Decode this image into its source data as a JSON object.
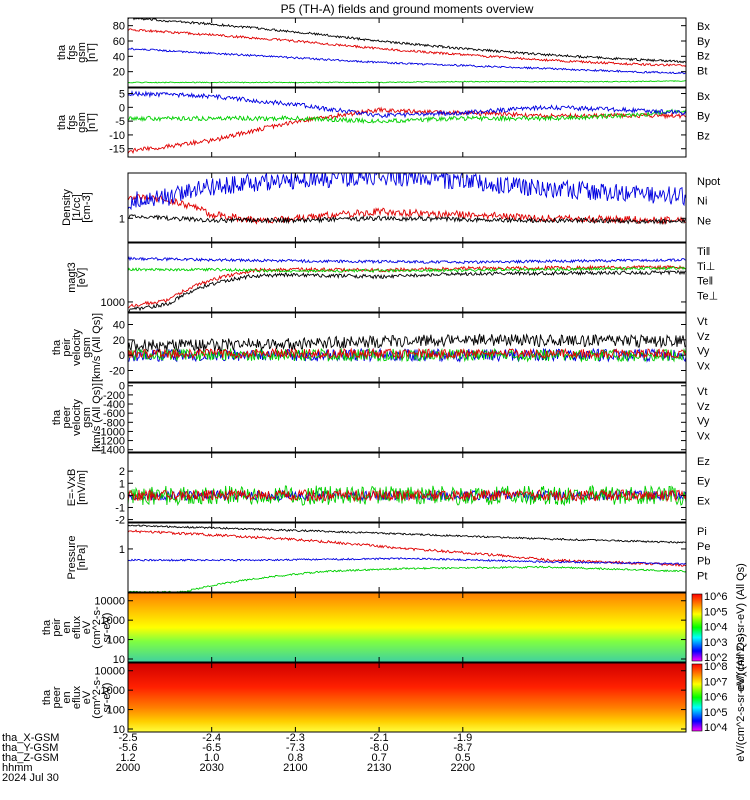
{
  "title": "P5 (TH-A) fields and ground moments overview",
  "colors": {
    "black": "#000000",
    "red": "#e00000",
    "green": "#00d000",
    "blue": "#0000e0"
  },
  "chart_data": [
    {
      "type": "line",
      "panel": "fgs_gsm_magnitude",
      "ylabel_lines": [
        "tha",
        "fgs",
        "gsm",
        "[nT]"
      ],
      "ylim": [
        0,
        90
      ],
      "yticks": [
        "20",
        "40",
        "60",
        "80"
      ],
      "series": [
        {
          "name": "Bt",
          "color": "black",
          "x_min": [
            0,
            30,
            60,
            90,
            120,
            150,
            180,
            200
          ],
          "values": [
            90,
            82,
            72,
            60,
            50,
            42,
            36,
            33
          ],
          "noise": 1.5
        },
        {
          "name": "Bz",
          "color": "red",
          "x_min": [
            0,
            30,
            60,
            90,
            120,
            150,
            180,
            200
          ],
          "values": [
            75,
            68,
            60,
            50,
            42,
            35,
            30,
            28
          ],
          "noise": 1.5
        },
        {
          "name": "By",
          "color": "green",
          "x_min": [
            0,
            30,
            60,
            90,
            120,
            150,
            180,
            200
          ],
          "values": [
            6,
            6,
            6,
            6,
            7,
            7,
            7,
            8
          ],
          "noise": 0.6
        },
        {
          "name": "Bx",
          "color": "blue",
          "x_min": [
            0,
            30,
            60,
            90,
            120,
            150,
            180,
            200
          ],
          "values": [
            50,
            44,
            38,
            32,
            28,
            24,
            20,
            18
          ],
          "noise": 1.2
        }
      ]
    },
    {
      "type": "line",
      "panel": "fgs_gsm_components",
      "ylabel_lines": [
        "tha",
        "fgs",
        "gsm",
        "[nT]"
      ],
      "ylim": [
        -18,
        7
      ],
      "yticks": [
        "-15",
        "-10",
        "-5",
        "0",
        "5"
      ],
      "series": [
        {
          "name": "Bz",
          "color": "red",
          "x_min": [
            0,
            30,
            60,
            90,
            120,
            150,
            180,
            200
          ],
          "values": [
            -16,
            -12,
            -5,
            -1,
            -2,
            -3,
            -3,
            -3
          ],
          "noise": 0.8
        },
        {
          "name": "By",
          "color": "green",
          "x_min": [
            0,
            30,
            60,
            90,
            120,
            150,
            180,
            200
          ],
          "values": [
            -4,
            -4,
            -4,
            -5,
            -4,
            -4,
            -3,
            -1
          ],
          "noise": 0.8
        },
        {
          "name": "Bx",
          "color": "blue",
          "x_min": [
            0,
            30,
            60,
            90,
            120,
            150,
            180,
            200
          ],
          "values": [
            5,
            4,
            1,
            -3,
            -2,
            0,
            -1,
            -2
          ],
          "noise": 0.8
        }
      ]
    },
    {
      "type": "line",
      "panel": "density",
      "ylabel_lines": [
        "Density",
        "[1/cc]",
        "[cm-3]"
      ],
      "ylim": [
        0.3,
        10
      ],
      "yticks": [
        "1"
      ],
      "series": [
        {
          "name": "Ne",
          "color": "red",
          "x_min": [
            0,
            15,
            30,
            45,
            60,
            90,
            120,
            150,
            200
          ],
          "values": [
            3.0,
            2.5,
            1.2,
            0.9,
            1.0,
            1.4,
            1.2,
            1.0,
            0.9
          ],
          "noise": 0.08
        },
        {
          "name": "Ni",
          "color": "black",
          "x_min": [
            0,
            30,
            60,
            90,
            120,
            150,
            200
          ],
          "values": [
            1.1,
            0.9,
            0.9,
            1.0,
            0.95,
            0.9,
            0.85
          ],
          "noise": 0.05
        },
        {
          "name": "Npot",
          "color": "blue",
          "x_min": [
            0,
            15,
            30,
            60,
            90,
            120,
            150,
            200
          ],
          "values": [
            2.5,
            3.0,
            5.0,
            7.0,
            8.5,
            6.5,
            4.5,
            3.0
          ],
          "noise": 0.2
        }
      ]
    },
    {
      "type": "line",
      "panel": "temperature",
      "ylabel_lines": [
        "magt3",
        "[eV]"
      ],
      "ylim": [
        600,
        20000
      ],
      "yticks": [
        "1000"
      ],
      "legend_only": [
        "Te⊥",
        "Te‖",
        "Ti⊥",
        "Ti‖"
      ],
      "series": [
        {
          "name": "Te⊥",
          "color": "red",
          "x_min": [
            0,
            15,
            30,
            45,
            60,
            90,
            120,
            200
          ],
          "values": [
            800,
            1100,
            3000,
            5000,
            5200,
            5000,
            5500,
            5800
          ],
          "noise": 0.04
        },
        {
          "name": "Te‖",
          "color": "black",
          "x_min": [
            0,
            15,
            30,
            45,
            60,
            90,
            120,
            200
          ],
          "values": [
            650,
            900,
            2500,
            3800,
            4000,
            3600,
            4200,
            4500
          ],
          "noise": 0.04
        },
        {
          "name": "Ti⊥",
          "color": "blue",
          "x_min": [
            0,
            60,
            120,
            200
          ],
          "values": [
            9000,
            8000,
            7500,
            8500
          ],
          "noise": 0.03
        },
        {
          "name": "Ti‖",
          "color": "green",
          "x_min": [
            0,
            30,
            60,
            120,
            200
          ],
          "values": [
            5200,
            5200,
            4800,
            5000,
            5600
          ],
          "noise": 0.03
        }
      ]
    },
    {
      "type": "line",
      "panel": "peir_velocity",
      "ylabel_lines": [
        "tha",
        "peir",
        "velocity",
        "gsm",
        "[km/s (All Qs)]"
      ],
      "ylim": [
        -35,
        55
      ],
      "yticks": [
        "-20",
        "0",
        "20",
        "40"
      ],
      "series": [
        {
          "name": "Vx",
          "color": "blue",
          "x_min": [
            0,
            200
          ],
          "values": [
            0,
            0
          ],
          "noise": 8
        },
        {
          "name": "Vy",
          "color": "green",
          "x_min": [
            0,
            200
          ],
          "values": [
            0,
            0
          ],
          "noise": 8
        },
        {
          "name": "Vz",
          "color": "red",
          "x_min": [
            0,
            200
          ],
          "values": [
            2,
            2
          ],
          "noise": 6
        },
        {
          "name": "Vt",
          "color": "black",
          "x_min": [
            0,
            60,
            120,
            200
          ],
          "values": [
            12,
            15,
            20,
            18
          ],
          "noise": 8
        }
      ]
    },
    {
      "type": "line",
      "panel": "peer_velocity",
      "ylabel_lines": [
        "tha",
        "peer",
        "velocity",
        "gsm",
        "[km/s (All Qs)]"
      ],
      "ylim": [
        -1450,
        60
      ],
      "yticks": [
        "-1400",
        "-1200",
        "-1000",
        "-800",
        "-600",
        "-400",
        "-200",
        "0"
      ],
      "empty": true,
      "series": [
        {
          "name": "Vx",
          "color": "blue"
        },
        {
          "name": "Vy",
          "color": "green"
        },
        {
          "name": "Vz",
          "color": "red"
        },
        {
          "name": "Vt",
          "color": "black"
        }
      ]
    },
    {
      "type": "line",
      "panel": "efield",
      "ylabel_lines": [
        "E=-VxB",
        "[mV/m]"
      ],
      "ylim": [
        -2.2,
        3.5
      ],
      "yticks": [
        "-2",
        "-1",
        "0",
        "1",
        "2"
      ],
      "series": [
        {
          "name": "Ex",
          "color": "blue",
          "x_min": [
            0,
            200
          ],
          "values": [
            0,
            0
          ],
          "noise": 0.4
        },
        {
          "name": "Ey",
          "color": "green",
          "x_min": [
            0,
            200
          ],
          "values": [
            0,
            0
          ],
          "noise": 0.8
        },
        {
          "name": "Ez",
          "color": "red",
          "x_min": [
            0,
            200
          ],
          "values": [
            0,
            0
          ],
          "noise": 0.45
        }
      ]
    },
    {
      "type": "line",
      "panel": "pressure",
      "ylabel_lines": [
        "Pressure",
        "[nPa]"
      ],
      "ylim": [
        0.1,
        4
      ],
      "yticks": [
        "1"
      ],
      "series": [
        {
          "name": "Pt",
          "color": "black",
          "x_min": [
            0,
            50,
            100,
            150,
            200
          ],
          "values": [
            3.5,
            2.8,
            2.2,
            1.7,
            1.4
          ],
          "noise": 0.02
        },
        {
          "name": "Pb",
          "color": "red",
          "x_min": [
            0,
            50,
            100,
            150,
            200
          ],
          "values": [
            2.6,
            1.8,
            1.0,
            0.55,
            0.42
          ],
          "noise": 0.03
        },
        {
          "name": "Pe",
          "color": "green",
          "x_min": [
            0,
            20,
            40,
            70,
            100,
            150,
            200
          ],
          "values": [
            0.1,
            0.1,
            0.18,
            0.3,
            0.35,
            0.38,
            0.3
          ],
          "noise": 0.02
        },
        {
          "name": "Pi",
          "color": "blue",
          "x_min": [
            0,
            50,
            100,
            150,
            200
          ],
          "values": [
            0.55,
            0.55,
            0.6,
            0.5,
            0.45
          ],
          "noise": 0.02
        }
      ]
    },
    {
      "type": "heatmap",
      "panel": "peir_eflux",
      "ylabel_lines": [
        "tha",
        "peir",
        "en",
        "eflux",
        "eV",
        "(cm^2-s-",
        "sr-eV)"
      ],
      "ylim": [
        7,
        25000
      ],
      "yticks": [
        "10",
        "100",
        "1000",
        "10000"
      ],
      "colorbar_label": "eV/(cm^2-s-sr-eV) (All Qs)",
      "colorbar_ticks": [
        "10^2",
        "10^3",
        "10^4",
        "10^5",
        "10^6"
      ]
    },
    {
      "type": "heatmap",
      "panel": "peer_eflux",
      "ylabel_lines": [
        "tha",
        "peer",
        "en",
        "eflux",
        "eV",
        "(cm^2-s-",
        "sr-eV)"
      ],
      "ylim": [
        7,
        25000
      ],
      "yticks": [
        "10",
        "100",
        "1000",
        "10000"
      ],
      "colorbar_label": "eV/(cm^2-s-sr-eV) (All Qs)",
      "colorbar_ticks": [
        "10^4",
        "10^5",
        "10^6",
        "10^7",
        "10^8"
      ]
    }
  ],
  "ephemeris": {
    "labels": [
      "tha_X-GSM",
      "tha_Y-GSM",
      "tha_Z-GSM",
      "hhmm",
      "2024 Jul 30"
    ],
    "columns": [
      {
        "x_min": 0,
        "values": [
          "-2.5",
          "-5.6",
          "1.2",
          "2000"
        ]
      },
      {
        "x_min": 30,
        "values": [
          "-2.4",
          "-6.5",
          "1.0",
          "2030"
        ]
      },
      {
        "x_min": 60,
        "values": [
          "-2.3",
          "-7.3",
          "0.8",
          "2100"
        ]
      },
      {
        "x_min": 90,
        "values": [
          "-2.1",
          "-8.0",
          "0.7",
          "2130"
        ]
      },
      {
        "x_min": 120,
        "values": [
          "-1.9",
          "-8.7",
          "0.5",
          "2200"
        ]
      }
    ]
  }
}
